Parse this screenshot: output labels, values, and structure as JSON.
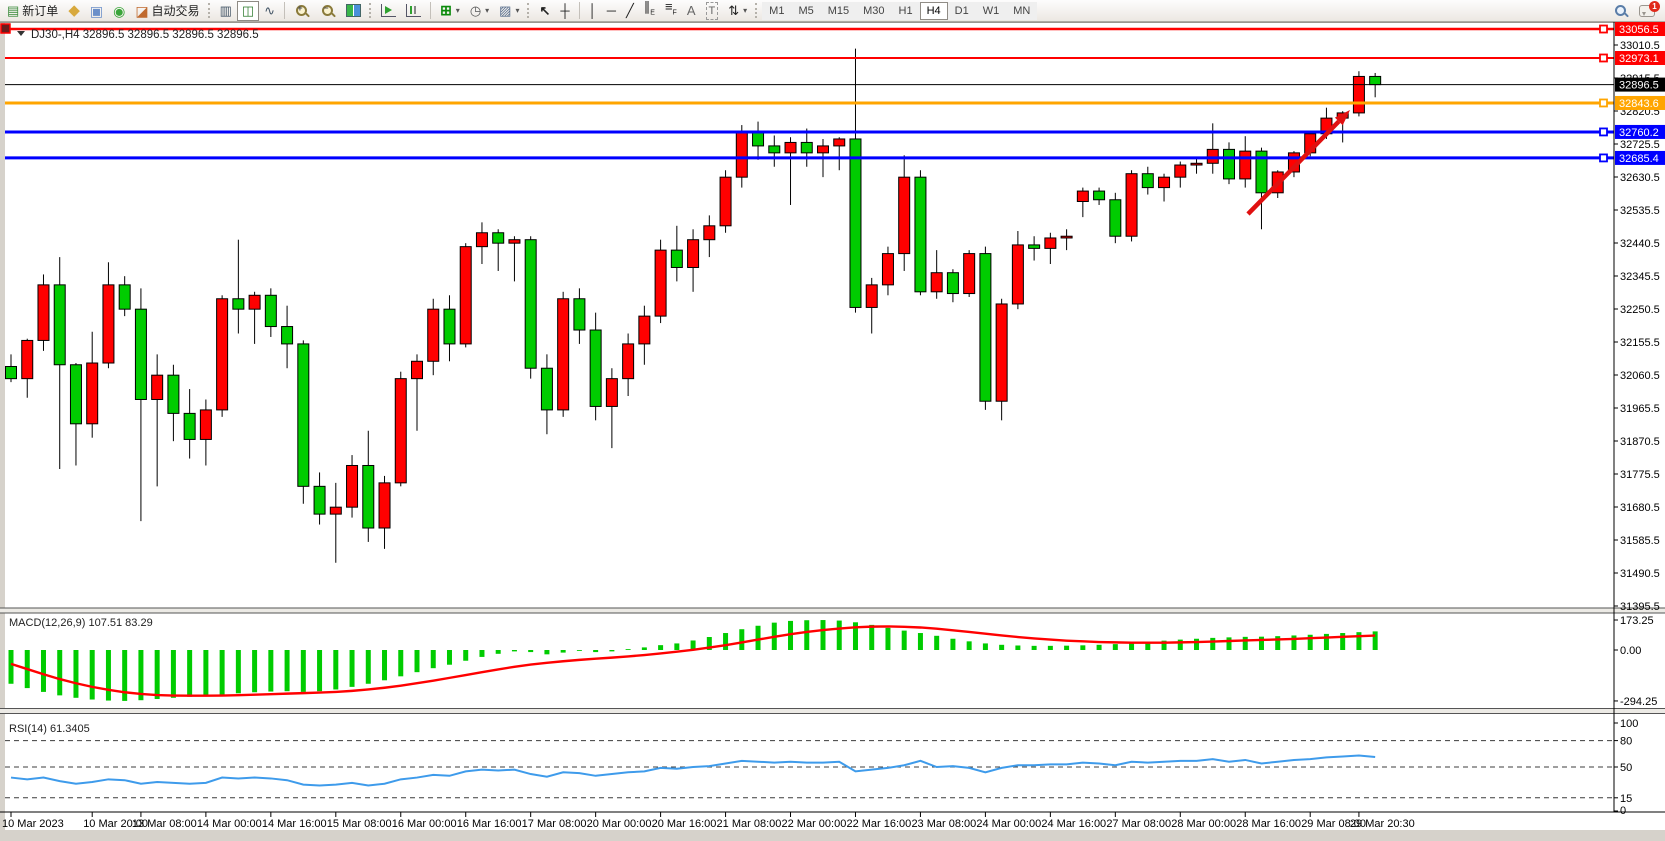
{
  "toolbar": {
    "new_order_label": "新订单",
    "autotrade_label": "自动交易",
    "timeframes": [
      {
        "label": "M1",
        "active": false
      },
      {
        "label": "M5",
        "active": false
      },
      {
        "label": "M15",
        "active": false
      },
      {
        "label": "M30",
        "active": false
      },
      {
        "label": "H1",
        "active": false
      },
      {
        "label": "H4",
        "active": true
      },
      {
        "label": "D1",
        "active": false
      },
      {
        "label": "W1",
        "active": false
      },
      {
        "label": "MN",
        "active": false
      }
    ],
    "notifications_badge": "1",
    "text_tool_label": "A",
    "label_tool_label": "T"
  },
  "chart": {
    "title_symbol": "DJ30-,H4",
    "title_ohlc": "32896.5 32896.5 32896.5 32896.5",
    "current_price": "32896.5"
  },
  "chart_data": {
    "type": "candlestick",
    "symbol": "DJ30-",
    "period": "H4",
    "ylim": [
      31350,
      33090
    ],
    "grid": false,
    "colors": {
      "up_body": "#FF0000",
      "down_body": "#00CC00",
      "wick": "#000000",
      "macd_hist": "#00CC00",
      "macd_signal": "#FF0000",
      "rsi_line": "#3E9BEB",
      "axis_text": "#000000",
      "arrow": "#E01010"
    },
    "price_axis_ticks": [
      "33010.5",
      "32915.5",
      "32820.5",
      "32725.5",
      "32630.5",
      "32535.5",
      "32440.5",
      "32345.5",
      "32250.5",
      "32155.5",
      "32060.5",
      "31965.5",
      "31870.5",
      "31775.5",
      "31680.5",
      "31585.5",
      "31490.5",
      "31395.5"
    ],
    "price_badges": [
      {
        "price": 33056.5,
        "label": "33056.5",
        "color": "#FF0000"
      },
      {
        "price": 32973.1,
        "label": "32973.1",
        "color": "#FF0000"
      },
      {
        "price": 32896.5,
        "label": "32896.5",
        "color": "#000000"
      },
      {
        "price": 32843.6,
        "label": "32843.6",
        "color": "#FFA500"
      },
      {
        "price": 32760.2,
        "label": "32760.2",
        "color": "#0000FF"
      },
      {
        "price": 32685.4,
        "label": "32685.4",
        "color": "#0000FF"
      }
    ],
    "hlines": [
      {
        "price": 33056.5,
        "color": "#FF0000",
        "width": 2.5,
        "handle": true
      },
      {
        "price": 32973.1,
        "color": "#FF0000",
        "width": 2,
        "handle": true
      },
      {
        "price": 32896.5,
        "color": "#000000",
        "width": 1,
        "handle": false
      },
      {
        "price": 32843.6,
        "color": "#FFA500",
        "width": 3,
        "handle": true
      },
      {
        "price": 32760.2,
        "color": "#0000FF",
        "width": 3,
        "handle": true
      },
      {
        "price": 32685.4,
        "color": "#0000FF",
        "width": 3,
        "handle": true
      }
    ],
    "time_ticks": [
      {
        "i": 0,
        "label": "10 Mar 2023"
      },
      {
        "i": 5,
        "label": "10 Mar 20:00"
      },
      {
        "i": 8,
        "label": "13 Mar 08:00"
      },
      {
        "i": 12,
        "label": "14 Mar 00:00"
      },
      {
        "i": 16,
        "label": "14 Mar 16:00"
      },
      {
        "i": 20,
        "label": "15 Mar 08:00"
      },
      {
        "i": 24,
        "label": "16 Mar 00:00"
      },
      {
        "i": 28,
        "label": "16 Mar 16:00"
      },
      {
        "i": 32,
        "label": "17 Mar 08:00"
      },
      {
        "i": 36,
        "label": "20 Mar 00:00"
      },
      {
        "i": 40,
        "label": "20 Mar 16:00"
      },
      {
        "i": 44,
        "label": "21 Mar 08:00"
      },
      {
        "i": 48,
        "label": "22 Mar 00:00"
      },
      {
        "i": 52,
        "label": "22 Mar 16:00"
      },
      {
        "i": 56,
        "label": "23 Mar 08:00"
      },
      {
        "i": 60,
        "label": "24 Mar 00:00"
      },
      {
        "i": 64,
        "label": "24 Mar 16:00"
      },
      {
        "i": 68,
        "label": "27 Mar 08:00"
      },
      {
        "i": 72,
        "label": "28 Mar 00:00"
      },
      {
        "i": 76,
        "label": "28 Mar 16:00"
      },
      {
        "i": 80,
        "label": "29 Mar 08:00"
      },
      {
        "i": 83,
        "label": "29 Mar 20:30"
      }
    ],
    "candles": [
      [
        32085,
        32120,
        32040,
        32050
      ],
      [
        32050,
        32165,
        31995,
        32160
      ],
      [
        32160,
        32350,
        32130,
        32320
      ],
      [
        32320,
        32400,
        31790,
        32090
      ],
      [
        32090,
        32095,
        31800,
        31920
      ],
      [
        31920,
        32185,
        31880,
        32095
      ],
      [
        32095,
        32385,
        32080,
        32320
      ],
      [
        32320,
        32345,
        32230,
        32250
      ],
      [
        32250,
        32310,
        31640,
        31990
      ],
      [
        31990,
        32120,
        31740,
        32060
      ],
      [
        32060,
        32090,
        31870,
        31950
      ],
      [
        31950,
        32020,
        31820,
        31875
      ],
      [
        31875,
        31990,
        31800,
        31960
      ],
      [
        31960,
        32290,
        31940,
        32280
      ],
      [
        32280,
        32450,
        32180,
        32250
      ],
      [
        32250,
        32300,
        32150,
        32290
      ],
      [
        32290,
        32310,
        32170,
        32200
      ],
      [
        32200,
        32260,
        32080,
        32150
      ],
      [
        32150,
        32160,
        31690,
        31740
      ],
      [
        31740,
        31780,
        31630,
        31660
      ],
      [
        31660,
        31750,
        31520,
        31680
      ],
      [
        31680,
        31830,
        31650,
        31800
      ],
      [
        31800,
        31900,
        31580,
        31620
      ],
      [
        31620,
        31770,
        31560,
        31750
      ],
      [
        31750,
        32070,
        31740,
        32050
      ],
      [
        32050,
        32120,
        31900,
        32100
      ],
      [
        32100,
        32280,
        32060,
        32250
      ],
      [
        32250,
        32290,
        32100,
        32150
      ],
      [
        32150,
        32440,
        32140,
        32430
      ],
      [
        32430,
        32500,
        32380,
        32470
      ],
      [
        32470,
        32480,
        32360,
        32440
      ],
      [
        32440,
        32460,
        32330,
        32450
      ],
      [
        32450,
        32460,
        32050,
        32080
      ],
      [
        32080,
        32120,
        31890,
        31960
      ],
      [
        31960,
        32300,
        31940,
        32280
      ],
      [
        32280,
        32310,
        32150,
        32190
      ],
      [
        32190,
        32240,
        31930,
        31970
      ],
      [
        31970,
        32080,
        31850,
        32050
      ],
      [
        32050,
        32180,
        32000,
        32150
      ],
      [
        32150,
        32260,
        32090,
        32230
      ],
      [
        32230,
        32450,
        32210,
        32420
      ],
      [
        32420,
        32490,
        32330,
        32370
      ],
      [
        32370,
        32480,
        32300,
        32450
      ],
      [
        32450,
        32520,
        32400,
        32490
      ],
      [
        32490,
        32650,
        32470,
        32630
      ],
      [
        32630,
        32780,
        32600,
        32760
      ],
      [
        32760,
        32790,
        32680,
        32720
      ],
      [
        32720,
        32750,
        32660,
        32700
      ],
      [
        32700,
        32745,
        32550,
        32730
      ],
      [
        32730,
        32770,
        32660,
        32700
      ],
      [
        32700,
        32740,
        32630,
        32720
      ],
      [
        32720,
        32745,
        32650,
        32740
      ],
      [
        32740,
        33000,
        32240,
        32255
      ],
      [
        32255,
        32340,
        32180,
        32320
      ],
      [
        32320,
        32430,
        32290,
        32410
      ],
      [
        32410,
        32693,
        32360,
        32630
      ],
      [
        32630,
        32650,
        32290,
        32300
      ],
      [
        32300,
        32420,
        32280,
        32355
      ],
      [
        32355,
        32365,
        32270,
        32295
      ],
      [
        32295,
        32420,
        32285,
        32410
      ],
      [
        32410,
        32430,
        31960,
        31985
      ],
      [
        31985,
        32280,
        31930,
        32265
      ],
      [
        32265,
        32475,
        32250,
        32435
      ],
      [
        32435,
        32460,
        32390,
        32425
      ],
      [
        32425,
        32470,
        32380,
        32455
      ],
      [
        32455,
        32480,
        32420,
        32460
      ],
      [
        32560,
        32600,
        32515,
        32590
      ],
      [
        32590,
        32600,
        32550,
        32565
      ],
      [
        32565,
        32585,
        32440,
        32460
      ],
      [
        32460,
        32650,
        32445,
        32640
      ],
      [
        32640,
        32660,
        32580,
        32600
      ],
      [
        32600,
        32640,
        32560,
        32630
      ],
      [
        32630,
        32675,
        32600,
        32665
      ],
      [
        32665,
        32685,
        32640,
        32670
      ],
      [
        32670,
        32785,
        32640,
        32710
      ],
      [
        32710,
        32730,
        32610,
        32625
      ],
      [
        32625,
        32748,
        32600,
        32705
      ],
      [
        32705,
        32715,
        32480,
        32585
      ],
      [
        32585,
        32650,
        32570,
        32645
      ],
      [
        32645,
        32705,
        32630,
        32700
      ],
      [
        32700,
        32760,
        32690,
        32755
      ],
      [
        32755,
        32830,
        32740,
        32800
      ],
      [
        32800,
        32820,
        32730,
        32815
      ],
      [
        32815,
        32935,
        32805,
        32920
      ],
      [
        32920,
        32930,
        32860,
        32896.5
      ]
    ],
    "macd": {
      "label": "MACD(12,26,9)",
      "value_main": "107.51",
      "value_signal": "83.29",
      "axis_ticks": [
        "173.25",
        "0.00",
        "-294.25"
      ],
      "axis_values": [
        173.25,
        0,
        -294.25
      ],
      "hist": [
        -195,
        -220,
        -242,
        -262,
        -276,
        -286,
        -292,
        -294,
        -290,
        -283,
        -276,
        -270,
        -265,
        -258,
        -250,
        -244,
        -240,
        -238,
        -242,
        -238,
        -228,
        -213,
        -195,
        -175,
        -152,
        -128,
        -105,
        -85,
        -62,
        -40,
        -22,
        -8,
        -12,
        -25,
        -15,
        -5,
        -12,
        -8,
        5,
        15,
        28,
        38,
        55,
        75,
        98,
        120,
        140,
        158,
        168,
        172,
        173,
        170,
        160,
        145,
        128,
        112,
        98,
        82,
        65,
        50,
        38,
        30,
        26,
        24,
        24,
        25,
        27,
        30,
        34,
        40,
        47,
        54,
        60,
        65,
        70,
        73,
        76,
        77,
        80,
        84,
        88,
        93,
        98,
        103,
        107.5
      ],
      "signal": [
        -80,
        -110,
        -140,
        -168,
        -192,
        -213,
        -230,
        -244,
        -254,
        -260,
        -263,
        -264,
        -264,
        -263,
        -261,
        -258,
        -255,
        -252,
        -249,
        -246,
        -242,
        -236,
        -228,
        -218,
        -206,
        -192,
        -177,
        -161,
        -145,
        -128,
        -112,
        -97,
        -84,
        -74,
        -65,
        -57,
        -50,
        -44,
        -37,
        -29,
        -20,
        -10,
        1,
        14,
        28,
        44,
        60,
        76,
        91,
        104,
        115,
        124,
        131,
        135,
        136,
        134,
        130,
        123,
        114,
        104,
        94,
        84,
        75,
        67,
        60,
        54,
        50,
        46,
        44,
        42,
        42,
        42,
        44,
        46,
        49,
        52,
        55,
        58,
        61,
        64,
        68,
        72,
        76,
        80,
        83.3
      ]
    },
    "rsi": {
      "label": "RSI(14)",
      "value": "61.3405",
      "axis_ticks": [
        "100",
        "80",
        "50",
        "15",
        "0"
      ],
      "levels": [
        80,
        50,
        15
      ],
      "values": [
        38,
        36,
        38,
        34,
        31,
        33,
        36,
        35,
        31,
        33,
        32,
        31,
        32,
        38,
        37,
        38,
        37,
        35,
        30,
        29,
        30,
        32,
        29,
        31,
        36,
        38,
        41,
        40,
        45,
        47,
        46,
        47,
        42,
        39,
        44,
        43,
        40,
        42,
        44,
        45,
        49,
        48,
        50,
        51,
        54,
        57,
        56,
        55,
        56,
        55,
        55,
        56,
        45,
        47,
        49,
        52,
        57,
        50,
        51,
        49,
        44,
        49,
        52,
        52,
        53,
        53,
        55,
        54,
        52,
        56,
        55,
        56,
        57,
        57,
        59,
        56,
        58,
        54,
        56,
        58,
        59,
        61,
        62,
        63,
        61.34
      ]
    },
    "annotations": [
      {
        "type": "arrow",
        "from_xy": [
          1248,
          214
        ],
        "to_xy": [
          1350,
          110
        ],
        "color": "#E01010",
        "width": 4.5
      }
    ]
  }
}
